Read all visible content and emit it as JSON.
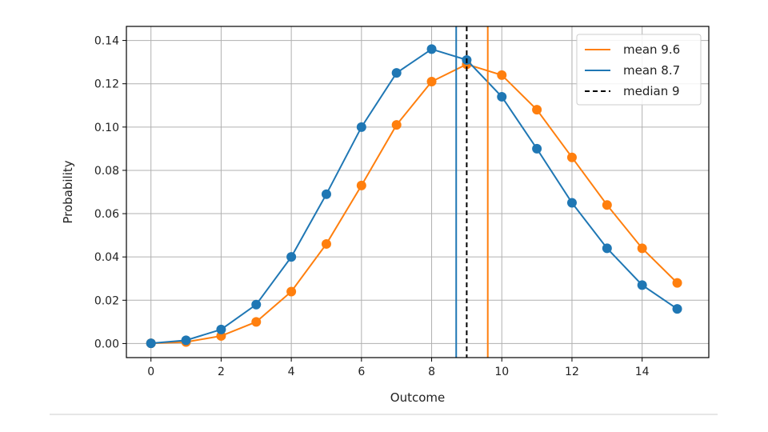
{
  "chart_data": {
    "type": "line",
    "xlabel": "Outcome",
    "ylabel": "Probability",
    "xlim": [
      -0.7,
      15.9
    ],
    "ylim": [
      -0.0065,
      0.1465
    ],
    "x_ticks": [
      "0",
      "2",
      "4",
      "6",
      "8",
      "10",
      "12",
      "14"
    ],
    "y_ticks": [
      "0.00",
      "0.02",
      "0.04",
      "0.06",
      "0.08",
      "0.10",
      "0.12",
      "0.14"
    ],
    "grid": true,
    "legend_position": "top-right",
    "x": [
      0,
      1,
      2,
      3,
      4,
      5,
      6,
      7,
      8,
      9,
      10,
      11,
      12,
      13,
      14,
      15
    ],
    "series": [
      {
        "color": "#ff7f0e",
        "markers": true,
        "values": [
          0.0001,
          0.0007,
          0.0035,
          0.01,
          0.024,
          0.046,
          0.073,
          0.101,
          0.121,
          0.129,
          0.124,
          0.108,
          0.086,
          0.064,
          0.044,
          0.028
        ]
      },
      {
        "color": "#1f77b4",
        "markers": true,
        "values": [
          0.0001,
          0.0015,
          0.0065,
          0.018,
          0.04,
          0.069,
          0.1,
          0.125,
          0.136,
          0.131,
          0.114,
          0.09,
          0.065,
          0.044,
          0.027,
          0.016
        ]
      }
    ],
    "vlines": [
      {
        "name": "mean 9.6",
        "x": 9.6,
        "color": "#ff7f0e",
        "style": "solid"
      },
      {
        "name": "mean 8.7",
        "x": 8.7,
        "color": "#1f77b4",
        "style": "solid"
      },
      {
        "name": "median 9",
        "x": 9,
        "color": "#000000",
        "style": "dashed"
      }
    ]
  }
}
